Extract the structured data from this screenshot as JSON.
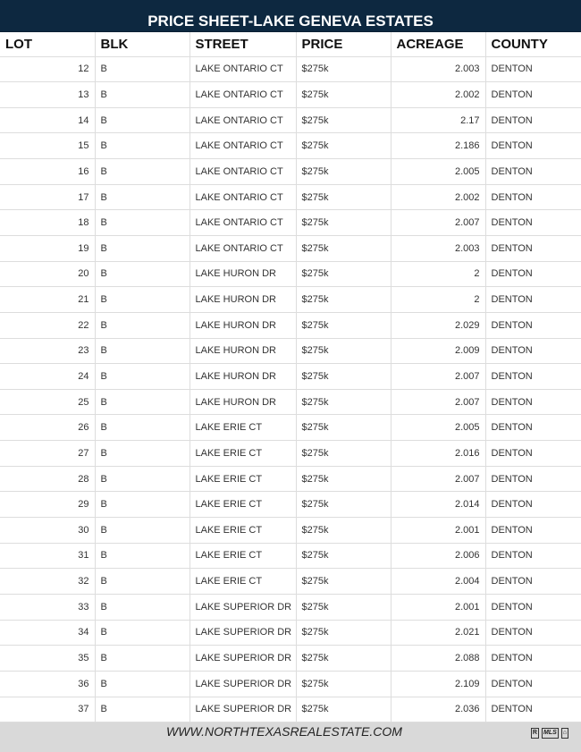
{
  "title": "PRICE SHEET-LAKE GENEVA ESTATES",
  "columns": [
    "LOT",
    "BLK",
    "STREET",
    "PRICE",
    "ACREAGE",
    "COUNTY"
  ],
  "rows": [
    [
      "12",
      "B",
      "LAKE ONTARIO CT",
      "$275k",
      "2.003",
      "DENTON"
    ],
    [
      "13",
      "B",
      "LAKE ONTARIO CT",
      "$275k",
      "2.002",
      "DENTON"
    ],
    [
      "14",
      "B",
      "LAKE ONTARIO CT",
      "$275k",
      "2.17",
      "DENTON"
    ],
    [
      "15",
      "B",
      "LAKE ONTARIO CT",
      "$275k",
      "2.186",
      "DENTON"
    ],
    [
      "16",
      "B",
      "LAKE ONTARIO CT",
      "$275k",
      "2.005",
      "DENTON"
    ],
    [
      "17",
      "B",
      "LAKE ONTARIO CT",
      "$275k",
      "2.002",
      "DENTON"
    ],
    [
      "18",
      "B",
      "LAKE ONTARIO CT",
      "$275k",
      "2.007",
      "DENTON"
    ],
    [
      "19",
      "B",
      "LAKE ONTARIO CT",
      "$275k",
      "2.003",
      "DENTON"
    ],
    [
      "20",
      "B",
      "LAKE HURON DR",
      "$275k",
      "2",
      "DENTON"
    ],
    [
      "21",
      "B",
      "LAKE HURON DR",
      "$275k",
      "2",
      "DENTON"
    ],
    [
      "22",
      "B",
      "LAKE HURON DR",
      "$275k",
      "2.029",
      "DENTON"
    ],
    [
      "23",
      "B",
      "LAKE HURON DR",
      "$275k",
      "2.009",
      "DENTON"
    ],
    [
      "24",
      "B",
      "LAKE HURON DR",
      "$275k",
      "2.007",
      "DENTON"
    ],
    [
      "25",
      "B",
      "LAKE HURON DR",
      "$275k",
      "2.007",
      "DENTON"
    ],
    [
      "26",
      "B",
      "LAKE ERIE CT",
      "$275k",
      "2.005",
      "DENTON"
    ],
    [
      "27",
      "B",
      "LAKE ERIE CT",
      "$275k",
      "2.016",
      "DENTON"
    ],
    [
      "28",
      "B",
      "LAKE ERIE CT",
      "$275k",
      "2.007",
      "DENTON"
    ],
    [
      "29",
      "B",
      "LAKE ERIE CT",
      "$275k",
      "2.014",
      "DENTON"
    ],
    [
      "30",
      "B",
      "LAKE ERIE CT",
      "$275k",
      "2.001",
      "DENTON"
    ],
    [
      "31",
      "B",
      "LAKE ERIE CT",
      "$275k",
      "2.006",
      "DENTON"
    ],
    [
      "32",
      "B",
      "LAKE ERIE CT",
      "$275k",
      "2.004",
      "DENTON"
    ],
    [
      "33",
      "B",
      "LAKE SUPERIOR DR",
      "$275k",
      "2.001",
      "DENTON"
    ],
    [
      "34",
      "B",
      "LAKE SUPERIOR DR",
      "$275k",
      "2.021",
      "DENTON"
    ],
    [
      "35",
      "B",
      "LAKE SUPERIOR DR",
      "$275k",
      "2.088",
      "DENTON"
    ],
    [
      "36",
      "B",
      "LAKE SUPERIOR DR",
      "$275k",
      "2.109",
      "DENTON"
    ],
    [
      "37",
      "B",
      "LAKE SUPERIOR DR",
      "$275k",
      "2.036",
      "DENTON"
    ]
  ],
  "footer": {
    "url": "WWW.NORTHTEXASREALESTATE.COM",
    "logos": [
      "realtor-logo",
      "MLS",
      "equal-housing-logo"
    ],
    "mls_text": "MLS"
  },
  "colors": {
    "title_bg": "#0d2840",
    "footer_bg": "#d9d9d9"
  }
}
